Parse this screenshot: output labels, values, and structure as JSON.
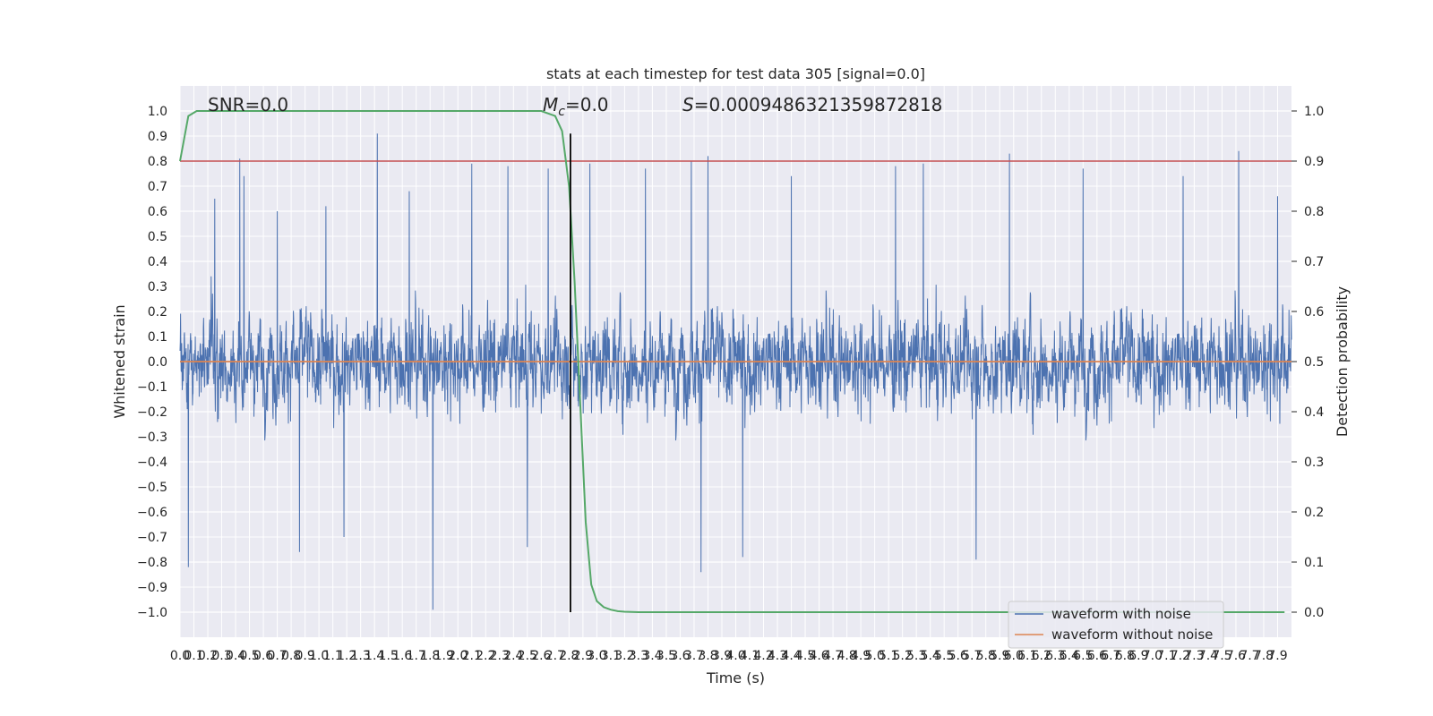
{
  "chart_data": {
    "type": "line",
    "title": "stats at each timestep for test data 305 [signal=0.0]",
    "xlabel": "Time (s)",
    "ylabel_left": "Whitened strain",
    "ylabel_right": "Detection probability",
    "xlim": [
      0.0,
      8.0
    ],
    "ylim_left": [
      -1.1,
      1.1
    ],
    "ylim_right": [
      -0.05,
      1.05
    ],
    "grid": true,
    "legend_placement": "lower-right",
    "x_tick_labels": [
      "0.0",
      "0.1",
      "0.2",
      "0.3",
      "0.4",
      "0.5",
      "0.6",
      "0.7",
      "0.8",
      "0.9",
      "1.0",
      "1.1",
      "1.2",
      "1.3",
      "1.4",
      "1.5",
      "1.6",
      "1.7",
      "1.8",
      "1.9",
      "2.0",
      "2.1",
      "2.2",
      "2.3",
      "2.4",
      "2.5",
      "2.6",
      "2.7",
      "2.8",
      "2.9",
      "3.0",
      "3.1",
      "3.2",
      "3.3",
      "3.4",
      "3.5",
      "3.6",
      "3.7",
      "3.8",
      "3.9",
      "4.0",
      "4.1",
      "4.2",
      "4.3",
      "4.4",
      "4.5",
      "4.6",
      "4.7",
      "4.8",
      "4.9",
      "5.0",
      "5.1",
      "5.2",
      "5.3",
      "5.4",
      "5.5",
      "5.6",
      "5.7",
      "5.8",
      "5.9",
      "6.0",
      "6.1",
      "6.2",
      "6.3",
      "6.4",
      "6.5",
      "6.6",
      "6.7",
      "6.8",
      "6.9",
      "7.0",
      "7.1",
      "7.2",
      "7.3",
      "7.4",
      "7.5",
      "7.6",
      "7.7",
      "7.8",
      "7.9"
    ],
    "y_tick_labels_left": [
      "1.0",
      "0.9",
      "0.8",
      "0.7",
      "0.6",
      "0.5",
      "0.4",
      "0.3",
      "0.2",
      "0.1",
      "0.0",
      "−0.1",
      "−0.2",
      "−0.3",
      "−0.4",
      "−0.5",
      "−0.6",
      "−0.7",
      "−0.8",
      "−0.9",
      "−1.0"
    ],
    "y_tick_labels_right": [
      "1.0",
      "0.9",
      "0.8",
      "0.7",
      "0.6",
      "0.5",
      "0.4",
      "0.3",
      "0.2",
      "0.1",
      "0.0"
    ],
    "annotations": {
      "snr": "SNR=0.0",
      "mc_symbol": "M",
      "mc_subscript": "c",
      "mc_value": "=0.0",
      "s_symbol": "S",
      "s_value": "=0.0009486321359872818"
    },
    "series": [
      {
        "name": "waveform with noise",
        "axis": "left",
        "color": "#4c72b0",
        "description": "whitened strain noise, dense, mostly within ±0.4 with spikes up to ~0.91 and down to ~-1.0",
        "sampling_interval": 0.002,
        "spikes": [
          {
            "x": 0.06,
            "y": -0.82
          },
          {
            "x": 0.25,
            "y": 0.65
          },
          {
            "x": 0.43,
            "y": 0.81
          },
          {
            "x": 0.46,
            "y": 0.74
          },
          {
            "x": 0.7,
            "y": 0.6
          },
          {
            "x": 0.86,
            "y": -0.76
          },
          {
            "x": 1.05,
            "y": 0.62
          },
          {
            "x": 1.18,
            "y": -0.7
          },
          {
            "x": 1.42,
            "y": 0.91
          },
          {
            "x": 1.65,
            "y": 0.68
          },
          {
            "x": 1.82,
            "y": -0.99
          },
          {
            "x": 2.1,
            "y": 0.79
          },
          {
            "x": 2.36,
            "y": 0.78
          },
          {
            "x": 2.5,
            "y": -0.74
          },
          {
            "x": 2.65,
            "y": 0.77
          },
          {
            "x": 2.95,
            "y": 0.79
          },
          {
            "x": 3.35,
            "y": 0.77
          },
          {
            "x": 3.68,
            "y": 0.8
          },
          {
            "x": 3.75,
            "y": -0.84
          },
          {
            "x": 3.8,
            "y": 0.82
          },
          {
            "x": 4.05,
            "y": -0.78
          },
          {
            "x": 4.4,
            "y": 0.74
          },
          {
            "x": 5.15,
            "y": 0.78
          },
          {
            "x": 5.35,
            "y": 0.79
          },
          {
            "x": 5.73,
            "y": -0.79
          },
          {
            "x": 5.97,
            "y": 0.83
          },
          {
            "x": 6.5,
            "y": 0.77
          },
          {
            "x": 7.22,
            "y": 0.74
          },
          {
            "x": 7.62,
            "y": 0.84
          },
          {
            "x": 7.9,
            "y": 0.66
          }
        ]
      },
      {
        "name": "waveform without noise",
        "axis": "left",
        "color": "#dd8452",
        "x": [
          0.0,
          8.0
        ],
        "y": [
          0.0,
          0.0
        ]
      },
      {
        "name": "",
        "axis": "right",
        "color": "#55a868",
        "x": [
          0.0,
          0.06,
          0.12,
          0.3,
          1.0,
          2.0,
          2.6,
          2.7,
          2.75,
          2.8,
          2.84,
          2.88,
          2.92,
          2.96,
          3.0,
          3.05,
          3.1,
          3.15,
          3.2,
          3.3,
          3.5,
          4.0,
          5.0,
          6.0,
          7.0,
          7.95
        ],
        "y": [
          0.9,
          0.99,
          1.0,
          1.0,
          1.0,
          1.0,
          1.0,
          0.99,
          0.96,
          0.85,
          0.66,
          0.42,
          0.18,
          0.055,
          0.022,
          0.01,
          0.005,
          0.002,
          0.001,
          0.0,
          0.0,
          0.0,
          0.0,
          0.0,
          0.0,
          0.0
        ]
      }
    ],
    "reference_lines": [
      {
        "orientation": "horizontal",
        "axis": "right",
        "y": 0.9,
        "color": "#c44e52"
      },
      {
        "orientation": "vertical",
        "x": 2.81,
        "ylim_left": [
          -1.0,
          0.91
        ],
        "color": "#000000"
      }
    ],
    "legend": [
      {
        "label": "waveform with noise",
        "color": "#4c72b0"
      },
      {
        "label": "waveform without noise",
        "color": "#dd8452"
      }
    ]
  }
}
